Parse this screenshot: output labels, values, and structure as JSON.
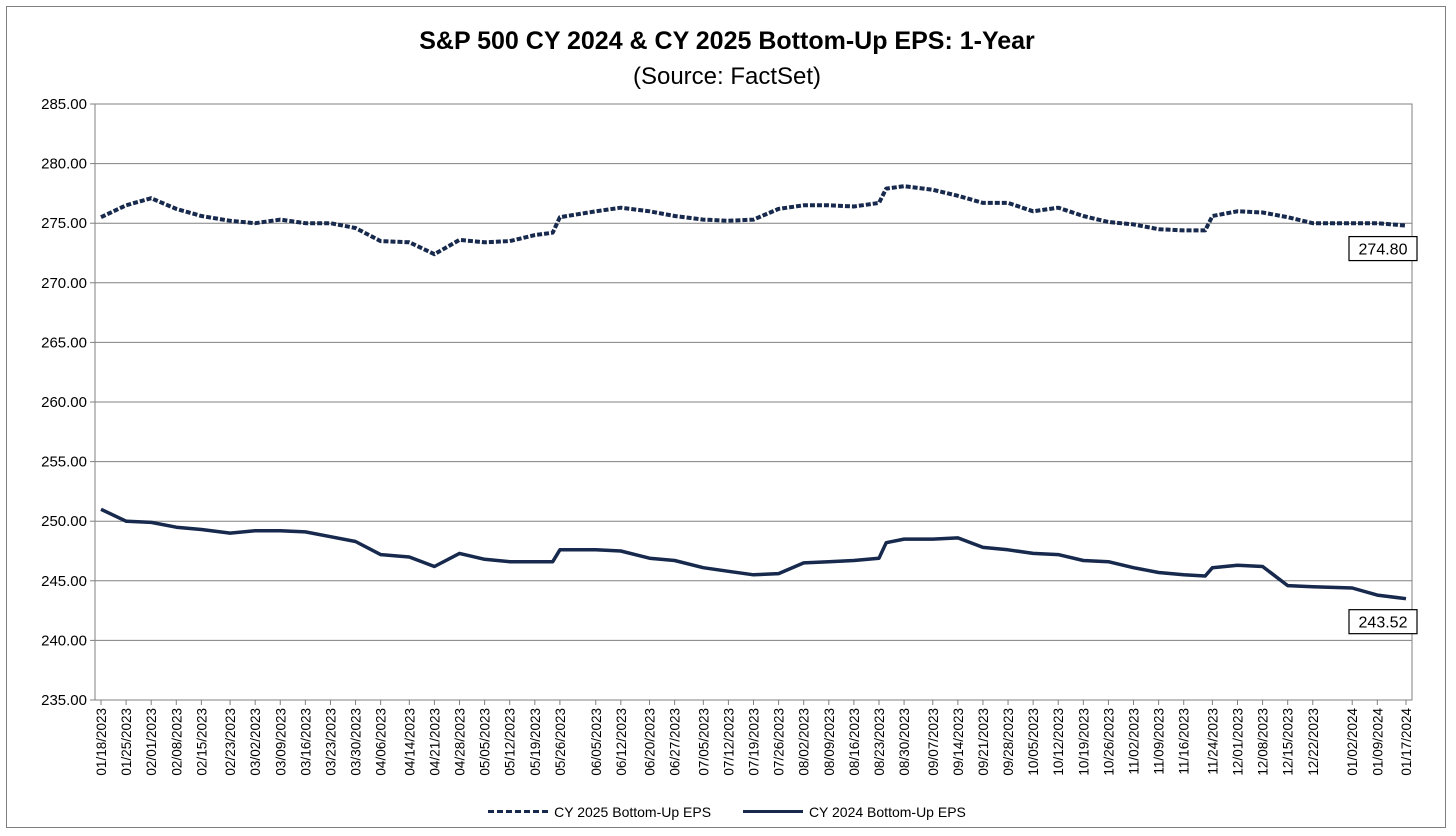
{
  "chart_data": {
    "type": "line",
    "title": "S&P 500 CY 2024 & CY 2025 Bottom-Up  EPS: 1-Year",
    "subtitle": "(Source: FactSet)",
    "xlabel": "",
    "ylabel": "",
    "ylim": [
      235,
      285
    ],
    "ytick_labels": [
      "285.00",
      "280.00",
      "275.00",
      "270.00",
      "265.00",
      "260.00",
      "255.00",
      "250.00",
      "245.00",
      "240.00",
      "235.00"
    ],
    "yticks": [
      285,
      280,
      275,
      270,
      265,
      260,
      255,
      250,
      245,
      240,
      235
    ],
    "x_tick_labels": [
      "01/18/2023",
      "01/25/2023",
      "02/01/2023",
      "02/08/2023",
      "02/15/2023",
      "02/23/2023",
      "03/02/2023",
      "03/09/2023",
      "03/16/2023",
      "03/23/2023",
      "03/30/2023",
      "04/06/2023",
      "04/14/2023",
      "04/21/2023",
      "04/28/2023",
      "05/05/2023",
      "05/12/2023",
      "05/19/2023",
      "05/26/2023",
      "06/05/2023",
      "06/12/2023",
      "06/20/2023",
      "06/27/2023",
      "07/05/2023",
      "07/12/2023",
      "07/19/2023",
      "07/26/2023",
      "08/02/2023",
      "08/09/2023",
      "08/16/2023",
      "08/23/2023",
      "08/30/2023",
      "09/07/2023",
      "09/14/2023",
      "09/21/2023",
      "09/28/2023",
      "10/05/2023",
      "10/12/2023",
      "10/19/2023",
      "10/26/2023",
      "11/02/2023",
      "11/09/2023",
      "11/16/2023",
      "11/24/2023",
      "12/01/2023",
      "12/08/2023",
      "12/15/2023",
      "12/22/2023",
      "01/02/2024",
      "01/09/2024",
      "01/17/2024"
    ],
    "grid": true,
    "legend_position": "bottom",
    "series": [
      {
        "name": "CY 2025 Bottom-Up EPS",
        "style": "dashed",
        "color": "#17294d",
        "end_label": "274.80",
        "x": [
          "01/18/2023",
          "01/25/2023",
          "02/01/2023",
          "02/08/2023",
          "02/15/2023",
          "02/23/2023",
          "03/02/2023",
          "03/09/2023",
          "03/16/2023",
          "03/23/2023",
          "03/30/2023",
          "04/06/2023",
          "04/14/2023",
          "04/21/2023",
          "04/28/2023",
          "05/05/2023",
          "05/12/2023",
          "05/19/2023",
          "05/24/2023",
          "05/26/2023",
          "06/05/2023",
          "06/12/2023",
          "06/20/2023",
          "06/27/2023",
          "07/05/2023",
          "07/12/2023",
          "07/19/2023",
          "07/26/2023",
          "08/02/2023",
          "08/09/2023",
          "08/16/2023",
          "08/23/2023",
          "08/25/2023",
          "08/30/2023",
          "09/07/2023",
          "09/14/2023",
          "09/21/2023",
          "09/28/2023",
          "10/05/2023",
          "10/12/2023",
          "10/19/2023",
          "10/26/2023",
          "11/02/2023",
          "11/09/2023",
          "11/16/2023",
          "11/22/2023",
          "11/24/2023",
          "12/01/2023",
          "12/08/2023",
          "12/15/2023",
          "12/22/2023",
          "01/02/2024",
          "01/09/2024",
          "01/17/2024"
        ],
        "values": [
          275.5,
          276.5,
          277.1,
          276.2,
          275.6,
          275.2,
          275.0,
          275.3,
          275.0,
          275.0,
          274.6,
          273.5,
          273.4,
          272.4,
          273.6,
          273.4,
          273.5,
          274.0,
          274.2,
          275.5,
          276.0,
          276.3,
          276.0,
          275.6,
          275.3,
          275.2,
          275.3,
          276.2,
          276.5,
          276.5,
          276.4,
          276.7,
          277.9,
          278.1,
          277.8,
          277.3,
          276.7,
          276.7,
          276.0,
          276.3,
          275.6,
          275.1,
          274.9,
          274.5,
          274.4,
          274.4,
          275.6,
          276.0,
          275.9,
          275.5,
          275.0,
          275.0,
          275.0,
          274.8
        ]
      },
      {
        "name": "CY 2024 Bottom-Up EPS",
        "style": "solid",
        "color": "#17294d",
        "end_label": "243.52",
        "x": [
          "01/18/2023",
          "01/25/2023",
          "02/01/2023",
          "02/08/2023",
          "02/15/2023",
          "02/23/2023",
          "03/02/2023",
          "03/09/2023",
          "03/16/2023",
          "03/23/2023",
          "03/30/2023",
          "04/06/2023",
          "04/14/2023",
          "04/21/2023",
          "04/28/2023",
          "05/05/2023",
          "05/12/2023",
          "05/19/2023",
          "05/24/2023",
          "05/26/2023",
          "06/05/2023",
          "06/12/2023",
          "06/20/2023",
          "06/27/2023",
          "07/05/2023",
          "07/12/2023",
          "07/19/2023",
          "07/26/2023",
          "08/02/2023",
          "08/09/2023",
          "08/16/2023",
          "08/23/2023",
          "08/25/2023",
          "08/30/2023",
          "09/07/2023",
          "09/14/2023",
          "09/21/2023",
          "09/28/2023",
          "10/05/2023",
          "10/12/2023",
          "10/19/2023",
          "10/26/2023",
          "11/02/2023",
          "11/09/2023",
          "11/16/2023",
          "11/22/2023",
          "11/24/2023",
          "12/01/2023",
          "12/08/2023",
          "12/15/2023",
          "12/22/2023",
          "01/02/2024",
          "01/09/2024",
          "01/17/2024"
        ],
        "values": [
          251.0,
          250.0,
          249.9,
          249.5,
          249.3,
          249.0,
          249.2,
          249.2,
          249.1,
          248.7,
          248.3,
          247.2,
          247.0,
          246.2,
          247.3,
          246.8,
          246.6,
          246.6,
          246.6,
          247.6,
          247.6,
          247.5,
          246.9,
          246.7,
          246.1,
          245.8,
          245.5,
          245.6,
          246.5,
          246.6,
          246.7,
          246.9,
          248.2,
          248.5,
          248.5,
          248.6,
          247.8,
          247.6,
          247.3,
          247.2,
          246.7,
          246.6,
          246.1,
          245.7,
          245.5,
          245.4,
          246.1,
          246.3,
          246.2,
          244.6,
          244.5,
          244.4,
          243.8,
          243.5
        ]
      }
    ]
  }
}
